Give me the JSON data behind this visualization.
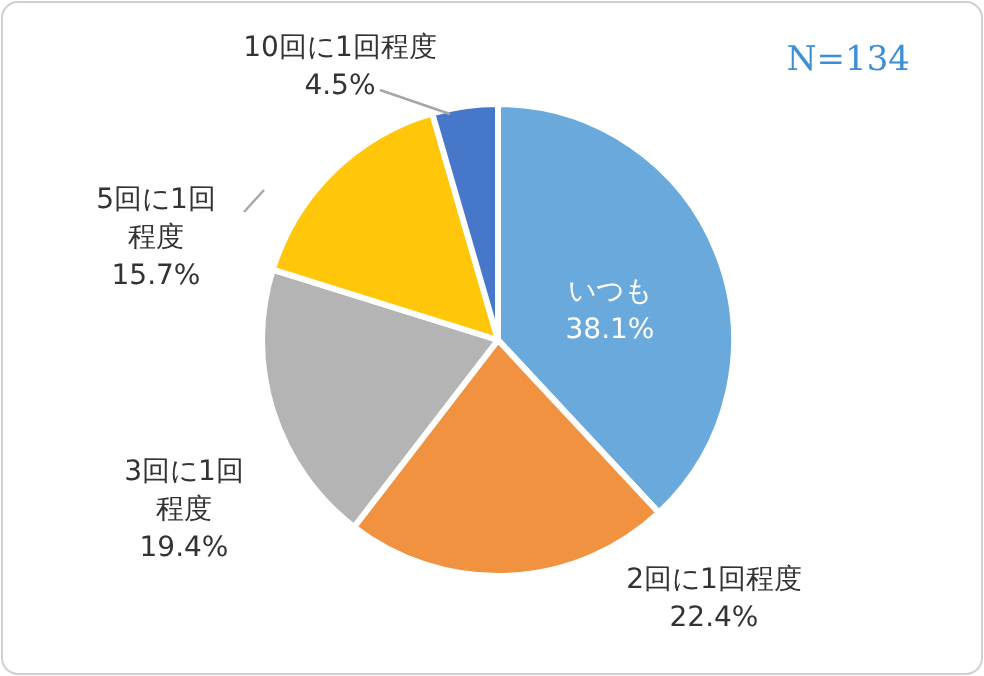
{
  "chart_data": {
    "type": "pie",
    "categories": [
      "いつも",
      "2回に1回程度",
      "3回に1回程度",
      "5回に1回程度",
      "10回に1回程度"
    ],
    "values": [
      38.1,
      22.4,
      19.4,
      15.7,
      4.5
    ],
    "colors": [
      "#6aa9dc",
      "#f09240",
      "#b4b4b4",
      "#ffc60a",
      "#4677c8"
    ],
    "annotations": [
      "N=134"
    ],
    "value_labels": [
      "38.1%",
      "22.4%",
      "19.4%",
      "15.7%",
      "4.5%"
    ]
  }
}
